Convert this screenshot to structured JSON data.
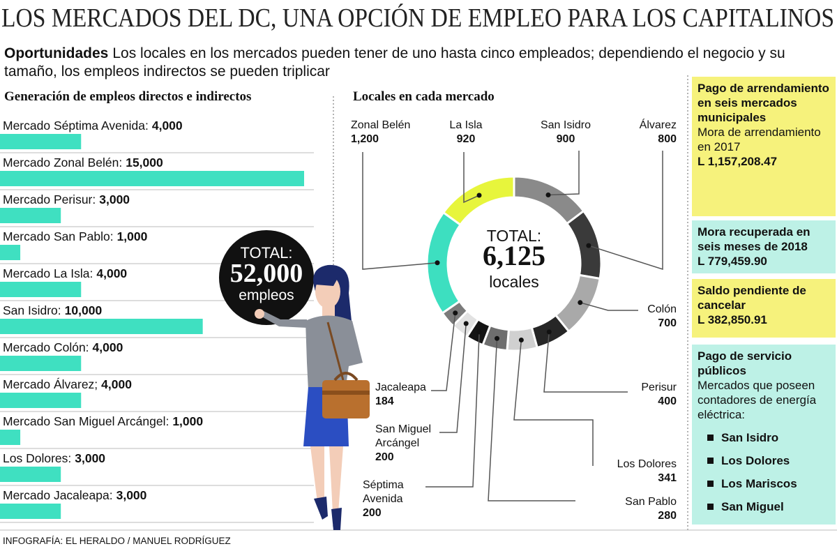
{
  "title": "LOS MERCADOS DEL DC, UNA OPCIÓN DE EMPLEO PARA LOS CAPITALINOS",
  "intro": {
    "lead": "Oportunidades",
    "text": "Los locales en los mercados pueden tener de uno hasta cinco empleados; dependiendo el negocio y su tamaño, los empleos indirectos se pueden triplicar"
  },
  "chart_data": [
    {
      "type": "bar",
      "title": "Generación de empleos directos e indirectos",
      "categories": [
        "Mercado Séptima Avenida:",
        "Mercado Zonal Belén:",
        "Mercado Perisur:",
        "Mercado San Pablo:",
        "Mercado La Isla:",
        "San Isidro:",
        "Mercado Colón:",
        "Mercado Álvarez;",
        "Mercado San Miguel Arcángel:",
        "Los Dolores:",
        "Mercado Jacaleapa:"
      ],
      "values": [
        4000,
        15000,
        3000,
        1000,
        4000,
        10000,
        4000,
        4000,
        1000,
        3000,
        3000
      ],
      "value_labels": [
        "4,000",
        "15,000",
        "3,000",
        "1,000",
        "4,000",
        "10,000",
        "4,000",
        "4,000",
        "1,000",
        "3,000",
        "3,000"
      ],
      "color": "#3fe0c1",
      "annotation": [
        "TOTAL:",
        "52,000",
        "empleos"
      ]
    },
    {
      "type": "donut",
      "title": "Locales en cada mercado",
      "categories": [
        "San Isidro",
        "Álvarez",
        "Colón",
        "Perisur",
        "Los Dolores",
        "San Pablo",
        "Séptima Avenida",
        "San Miguel Arcángel",
        "Jacaleapa",
        "Zonal Belén",
        "La Isla"
      ],
      "values": [
        900,
        800,
        700,
        400,
        341,
        280,
        200,
        200,
        184,
        1200,
        920
      ],
      "value_labels": [
        "900",
        "800",
        "700",
        "400",
        "341",
        "280",
        "200",
        "200",
        "184",
        "1,200",
        "920"
      ],
      "colors": [
        "#8a8a8a",
        "#3a3a3a",
        "#a9a9a9",
        "#262626",
        "#d0d0d0",
        "#6e6e6e",
        "#141414",
        "#e2e2e2",
        "#7b7b7b",
        "#3ddfc0",
        "#e7f53c"
      ],
      "annotation": [
        "TOTAL:",
        "6,125",
        "locales"
      ]
    }
  ],
  "sidebar": [
    {
      "heading": "Pago de arrendamiento en seis mercados municipales",
      "text": "Mora de arrendamiento en 2017",
      "amount": "L 1,157,208.47"
    },
    {
      "heading": "Mora recuperada en seis meses de 2018",
      "amount": "L 779,459.90"
    },
    {
      "heading": "Saldo pendiente de cancelar",
      "amount": "L 382,850.91"
    },
    {
      "heading": "Pago de servicio públicos",
      "text": "Mercados que poseen contadores de energía eléctrica:",
      "items": [
        "San Isidro",
        "Los Dolores",
        "Los Mariscos",
        "San Miguel"
      ]
    }
  ],
  "credit": "INFOGRAFÍA: EL HERALDO / MANUEL RODRÍGUEZ"
}
